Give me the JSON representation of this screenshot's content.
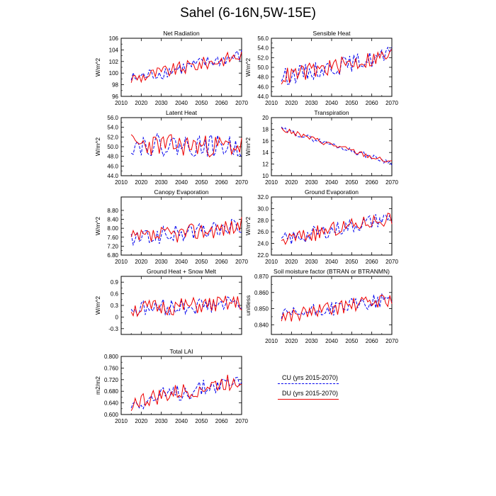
{
  "title": "Sahel (6-16N,5W-15E)",
  "legend": [
    {
      "label": "CU (yrs 2015-2070)",
      "color": "#0000ee",
      "style": "dashed"
    },
    {
      "label": "DU (yrs 2015-2070)",
      "color": "#ee0000",
      "style": "solid"
    }
  ],
  "chart_data": [
    {
      "type": "line",
      "title": "Net Radiation",
      "ylabel": "W/m^2",
      "xlim": [
        2010,
        2070
      ],
      "ylim": [
        96,
        106
      ],
      "yticks": [
        "96",
        "98",
        "100",
        "102",
        "104",
        "106"
      ],
      "xticks": [
        "2010",
        "2020",
        "2030",
        "2040",
        "2050",
        "2060",
        "2070"
      ],
      "show_xticks": true,
      "gen": {
        "start": 99,
        "end": 103,
        "amp": 1.2,
        "seed": 1
      },
      "series": [
        {
          "name": "CU (yrs 2015-2070)",
          "color": "#0000ee",
          "dash": true
        },
        {
          "name": "DU (yrs 2015-2070)",
          "color": "#ee0000",
          "dash": false
        }
      ]
    },
    {
      "type": "line",
      "title": "Sensible Heat",
      "ylabel": "W/m^2",
      "xlim": [
        2010,
        2070
      ],
      "ylim": [
        44,
        56
      ],
      "yticks": [
        "44.0",
        "46.0",
        "48.0",
        "50.0",
        "52.0",
        "54.0",
        "56.0"
      ],
      "xticks": [
        "2010",
        "2020",
        "2030",
        "2040",
        "2050",
        "2060",
        "2070"
      ],
      "show_xticks": true,
      "gen": {
        "start": 48,
        "end": 52.5,
        "amp": 1.8,
        "seed": 2
      },
      "series": [
        {
          "name": "CU (yrs 2015-2070)",
          "color": "#0000ee",
          "dash": true
        },
        {
          "name": "DU (yrs 2015-2070)",
          "color": "#ee0000",
          "dash": false
        }
      ]
    },
    {
      "type": "line",
      "title": "Latent Heat",
      "ylabel": "W/m^2",
      "xlim": [
        2010,
        2070
      ],
      "ylim": [
        44,
        56
      ],
      "yticks": [
        "44.0",
        "46.0",
        "48.0",
        "50.0",
        "52.0",
        "54.0",
        "56.0"
      ],
      "xticks": [
        "2010",
        "2020",
        "2030",
        "2040",
        "2050",
        "2060",
        "2070"
      ],
      "show_xticks": true,
      "gen": {
        "start": 50.5,
        "end": 50,
        "amp": 2.3,
        "seed": 3
      },
      "series": [
        {
          "name": "CU (yrs 2015-2070)",
          "color": "#0000ee",
          "dash": true
        },
        {
          "name": "DU (yrs 2015-2070)",
          "color": "#ee0000",
          "dash": false
        }
      ]
    },
    {
      "type": "line",
      "title": "Transpiration",
      "ylabel": "W/m^2",
      "xlim": [
        2010,
        2070
      ],
      "ylim": [
        10,
        20
      ],
      "yticks": [
        "10",
        "12",
        "14",
        "16",
        "18",
        "20"
      ],
      "xticks": [
        "2010",
        "2020",
        "2030",
        "2040",
        "2050",
        "2060",
        "2070"
      ],
      "show_xticks": true,
      "gen": {
        "start": 18,
        "end": 12.2,
        "amp": 0.45,
        "seed": 4
      },
      "series": [
        {
          "name": "CU (yrs 2015-2070)",
          "color": "#0000ee",
          "dash": true
        },
        {
          "name": "DU (yrs 2015-2070)",
          "color": "#ee0000",
          "dash": false
        }
      ]
    },
    {
      "type": "line",
      "title": "Canopy Evaporation",
      "ylabel": "W/m^2",
      "xlim": [
        2010,
        2070
      ],
      "ylim": [
        6.8,
        9.4
      ],
      "yticks": [
        "6.80",
        "7.20",
        "7.60",
        "8.00",
        "8.40",
        "8.80"
      ],
      "xticks": [
        "2010",
        "2020",
        "2030",
        "2040",
        "2050",
        "2060",
        "2070"
      ],
      "show_xticks": true,
      "gen": {
        "start": 7.5,
        "end": 8.1,
        "amp": 0.4,
        "seed": 5
      },
      "series": [
        {
          "name": "CU (yrs 2015-2070)",
          "color": "#0000ee",
          "dash": true
        },
        {
          "name": "DU (yrs 2015-2070)",
          "color": "#ee0000",
          "dash": false
        }
      ]
    },
    {
      "type": "line",
      "title": "Ground Evaporation",
      "ylabel": "W/m^2",
      "xlim": [
        2010,
        2070
      ],
      "ylim": [
        22,
        32
      ],
      "yticks": [
        "22.0",
        "24.0",
        "26.0",
        "28.0",
        "30.0",
        "32.0"
      ],
      "xticks": [
        "2010",
        "2020",
        "2030",
        "2040",
        "2050",
        "2060",
        "2070"
      ],
      "show_xticks": true,
      "gen": {
        "start": 24.5,
        "end": 28.5,
        "amp": 1.3,
        "seed": 6
      },
      "series": [
        {
          "name": "CU (yrs 2015-2070)",
          "color": "#0000ee",
          "dash": true
        },
        {
          "name": "DU (yrs 2015-2070)",
          "color": "#ee0000",
          "dash": false
        }
      ]
    },
    {
      "type": "line",
      "title": "Ground Heat + Snow Melt",
      "ylabel": "W/m^2",
      "xlim": [
        2010,
        2070
      ],
      "ylim": [
        -0.45,
        1.05
      ],
      "yticks": [
        "-0.3",
        "0",
        "0.3",
        "0.6",
        "0.9"
      ],
      "ytick_values": [
        -0.3,
        0,
        0.3,
        0.6,
        0.9
      ],
      "xticks": [
        "2010",
        "2020",
        "2030",
        "2040",
        "2050",
        "2060",
        "2070"
      ],
      "show_xticks": false,
      "gen": {
        "start": 0.2,
        "end": 0.35,
        "amp": 0.22,
        "seed": 7
      },
      "series": [
        {
          "name": "CU (yrs 2015-2070)",
          "color": "#0000ee",
          "dash": true
        },
        {
          "name": "DU (yrs 2015-2070)",
          "color": "#ee0000",
          "dash": false
        }
      ]
    },
    {
      "type": "line",
      "title": "Soil moisture factor (BTRAN or BTRANMN)",
      "ylabel": "unitless",
      "xlim": [
        2010,
        2070
      ],
      "ylim": [
        0.834,
        0.87
      ],
      "yticks": [
        "0.840",
        "0.850",
        "0.860",
        "0.870"
      ],
      "ytick_values": [
        0.84,
        0.85,
        0.86,
        0.87
      ],
      "xticks": [
        "2010",
        "2020",
        "2030",
        "2040",
        "2050",
        "2060",
        "2070"
      ],
      "show_xticks": true,
      "gen": {
        "start": 0.845,
        "end": 0.856,
        "amp": 0.0045,
        "seed": 8
      },
      "series": [
        {
          "name": "CU (yrs 2015-2070)",
          "color": "#0000ee",
          "dash": true
        },
        {
          "name": "DU (yrs 2015-2070)",
          "color": "#ee0000",
          "dash": false
        }
      ]
    },
    {
      "type": "line",
      "title": "Total LAI",
      "ylabel": "m2/m2",
      "xlim": [
        2010,
        2070
      ],
      "ylim": [
        0.6,
        0.8
      ],
      "yticks": [
        "0.600",
        "0.640",
        "0.680",
        "0.720",
        "0.760",
        "0.800"
      ],
      "xticks": [
        "2010",
        "2020",
        "2030",
        "2040",
        "2050",
        "2060",
        "2070"
      ],
      "show_xticks": true,
      "gen": {
        "start": 0.64,
        "end": 0.72,
        "amp": 0.03,
        "seed": 9
      },
      "series": [
        {
          "name": "CU (yrs 2015-2070)",
          "color": "#0000ee",
          "dash": true
        },
        {
          "name": "DU (yrs 2015-2070)",
          "color": "#ee0000",
          "dash": false
        }
      ]
    }
  ]
}
